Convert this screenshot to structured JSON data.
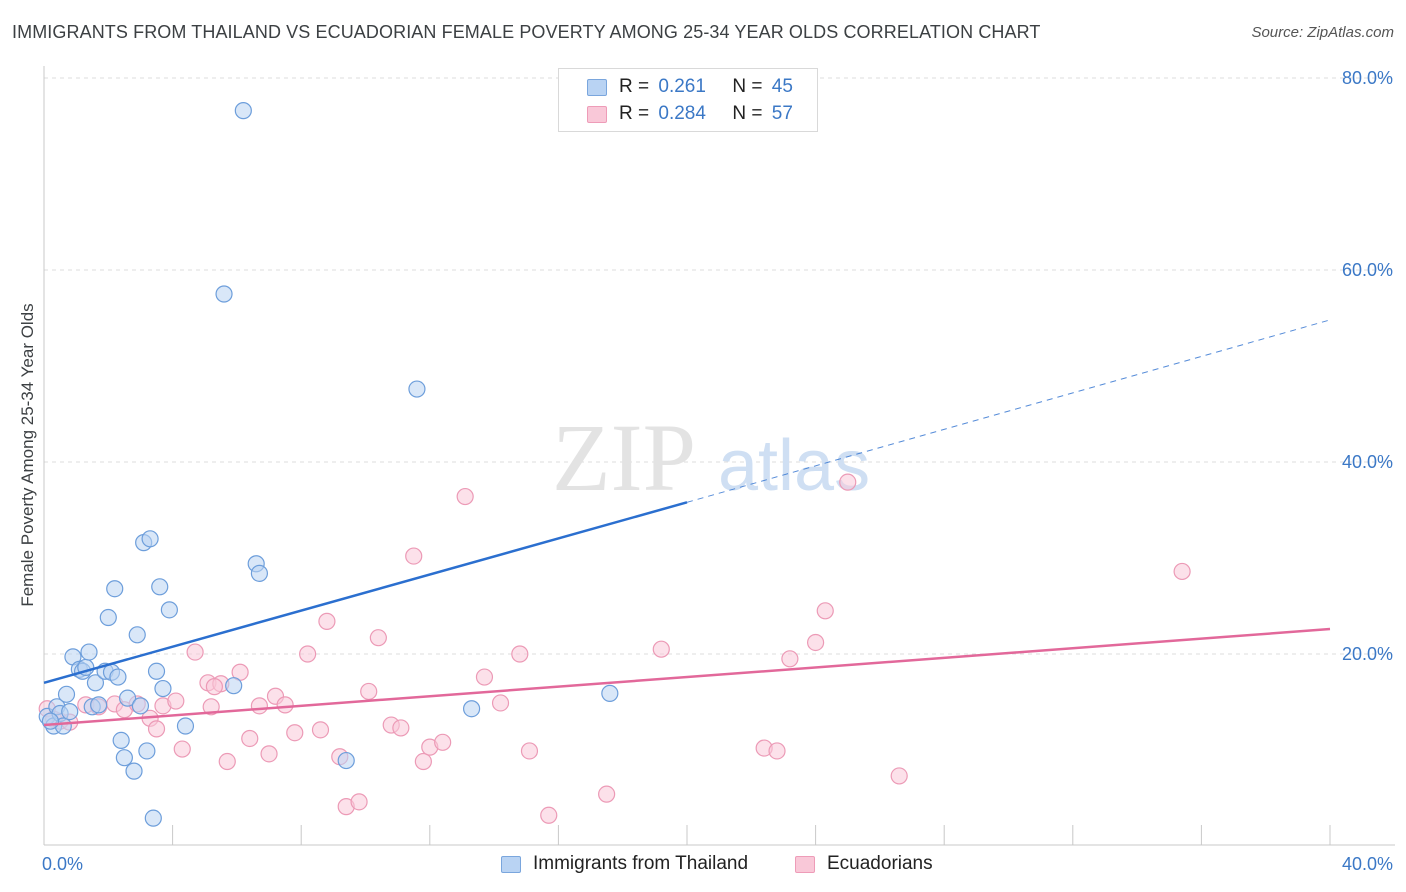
{
  "title": "IMMIGRANTS FROM THAILAND VS ECUADORIAN FEMALE POVERTY AMONG 25-34 YEAR OLDS CORRELATION CHART",
  "source": "Source: ZipAtlas.com",
  "watermark": {
    "zip": "ZIP",
    "atlas": "atlas"
  },
  "legend": {
    "r_label": "R =",
    "n_label": "N =",
    "series": [
      {
        "r": "0.261",
        "n": "45"
      },
      {
        "r": "0.284",
        "n": "57"
      }
    ]
  },
  "bottom_legend": {
    "thailand": "Immigrants from Thailand",
    "ecuadorians": "Ecuadorians"
  },
  "colors": {
    "blue_fill": "#b9d3f3",
    "blue_stroke": "#6d9edb",
    "blue_line": "#2b6fcf",
    "pink_fill": "#f9c8d8",
    "pink_stroke": "#ec9ab6",
    "pink_line": "#e2689a",
    "tick": "#3b78c6",
    "grid": "#dcdcdc"
  },
  "chart_data": {
    "type": "scatter",
    "title": "IMMIGRANTS FROM THAILAND VS ECUADORIAN FEMALE POVERTY AMONG 25-34 YEAR OLDS CORRELATION CHART",
    "xlabel": "",
    "ylabel": "Female Poverty Among 25-34 Year Olds",
    "xlim": [
      0,
      40
    ],
    "ylim": [
      0,
      82
    ],
    "x_tick_labels": [
      "0.0%",
      "40.0%"
    ],
    "y_ticks": [
      20,
      40,
      60,
      80
    ],
    "y_tick_labels": [
      "20.0%",
      "40.0%",
      "60.0%",
      "80.0%"
    ],
    "series": [
      {
        "name": "Immigrants from Thailand",
        "color": "blue",
        "trend": {
          "x0": 0,
          "y0": 17.0,
          "x1": 20,
          "y1": 35.8,
          "dash_to_x": 40,
          "dash_to_y": 54.8
        },
        "points": [
          [
            0.1,
            13.5
          ],
          [
            0.3,
            12.5
          ],
          [
            0.4,
            14.5
          ],
          [
            0.5,
            13.8
          ],
          [
            0.6,
            12.5
          ],
          [
            0.7,
            15.8
          ],
          [
            0.8,
            14.0
          ],
          [
            0.9,
            19.7
          ],
          [
            1.1,
            18.4
          ],
          [
            1.2,
            18.2
          ],
          [
            1.3,
            18.6
          ],
          [
            1.4,
            20.2
          ],
          [
            1.5,
            14.5
          ],
          [
            1.6,
            17.0
          ],
          [
            1.7,
            14.7
          ],
          [
            1.9,
            18.2
          ],
          [
            2.0,
            23.8
          ],
          [
            2.1,
            18.1
          ],
          [
            2.2,
            26.8
          ],
          [
            2.3,
            17.6
          ],
          [
            2.4,
            11.0
          ],
          [
            2.5,
            9.2
          ],
          [
            2.6,
            15.4
          ],
          [
            2.8,
            7.8
          ],
          [
            2.9,
            22.0
          ],
          [
            3.0,
            14.6
          ],
          [
            3.1,
            31.6
          ],
          [
            3.2,
            9.9
          ],
          [
            3.3,
            32.0
          ],
          [
            3.4,
            2.9
          ],
          [
            3.5,
            18.2
          ],
          [
            3.6,
            27.0
          ],
          [
            3.7,
            16.4
          ],
          [
            3.9,
            24.6
          ],
          [
            4.4,
            12.5
          ],
          [
            5.6,
            57.5
          ],
          [
            5.9,
            16.7
          ],
          [
            6.2,
            76.6
          ],
          [
            6.6,
            29.4
          ],
          [
            6.7,
            28.4
          ],
          [
            9.4,
            8.9
          ],
          [
            11.6,
            47.6
          ],
          [
            13.3,
            14.3
          ],
          [
            17.6,
            15.9
          ],
          [
            0.2,
            13.0
          ]
        ]
      },
      {
        "name": "Ecuadorians",
        "color": "pink",
        "trend": {
          "x0": 0,
          "y0": 12.6,
          "x1": 40,
          "y1": 22.6
        },
        "points": [
          [
            0.1,
            14.3
          ],
          [
            0.3,
            13.2
          ],
          [
            0.5,
            13.0
          ],
          [
            0.8,
            12.9
          ],
          [
            1.3,
            14.7
          ],
          [
            1.7,
            14.5
          ],
          [
            2.2,
            14.8
          ],
          [
            2.5,
            14.2
          ],
          [
            2.9,
            14.8
          ],
          [
            3.3,
            13.3
          ],
          [
            3.5,
            12.2
          ],
          [
            3.7,
            14.6
          ],
          [
            4.1,
            15.1
          ],
          [
            4.3,
            10.1
          ],
          [
            4.7,
            20.2
          ],
          [
            5.1,
            17.0
          ],
          [
            5.2,
            14.5
          ],
          [
            5.5,
            16.9
          ],
          [
            5.7,
            8.8
          ],
          [
            6.1,
            18.1
          ],
          [
            6.4,
            11.2
          ],
          [
            6.7,
            14.6
          ],
          [
            7.0,
            9.6
          ],
          [
            7.2,
            15.6
          ],
          [
            7.5,
            14.7
          ],
          [
            7.8,
            11.8
          ],
          [
            8.2,
            20.0
          ],
          [
            8.6,
            12.1
          ],
          [
            8.8,
            23.4
          ],
          [
            9.2,
            9.3
          ],
          [
            9.4,
            4.1
          ],
          [
            9.8,
            4.6
          ],
          [
            10.1,
            16.1
          ],
          [
            10.4,
            21.7
          ],
          [
            10.8,
            12.6
          ],
          [
            11.1,
            12.3
          ],
          [
            11.5,
            30.2
          ],
          [
            11.8,
            8.8
          ],
          [
            12.0,
            10.3
          ],
          [
            12.4,
            10.8
          ],
          [
            13.1,
            36.4
          ],
          [
            13.7,
            17.6
          ],
          [
            14.2,
            14.9
          ],
          [
            14.8,
            20.0
          ],
          [
            15.1,
            9.9
          ],
          [
            15.7,
            3.2
          ],
          [
            17.5,
            5.4
          ],
          [
            19.2,
            20.5
          ],
          [
            22.4,
            10.2
          ],
          [
            22.8,
            9.9
          ],
          [
            23.2,
            19.5
          ],
          [
            24.0,
            21.2
          ],
          [
            24.3,
            24.5
          ],
          [
            25.0,
            37.9
          ],
          [
            26.6,
            7.3
          ],
          [
            35.4,
            28.6
          ],
          [
            5.3,
            16.6
          ]
        ]
      }
    ]
  }
}
